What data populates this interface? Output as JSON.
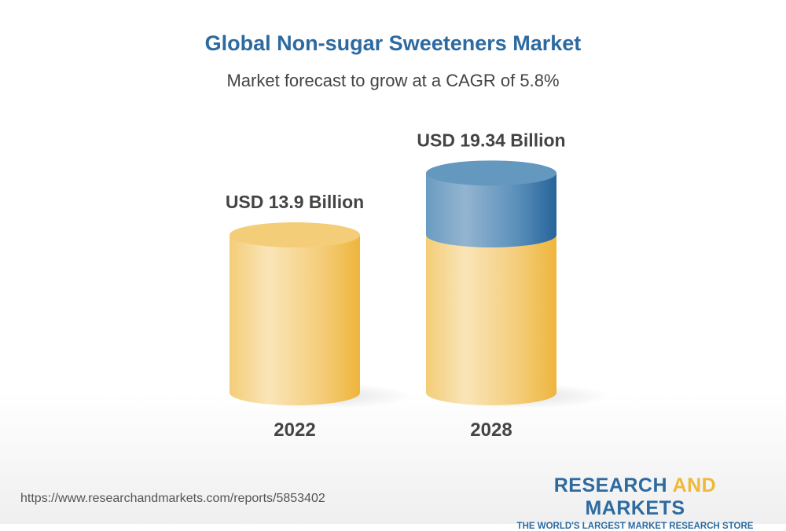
{
  "header": {
    "title": "Global Non-sugar Sweeteners Market",
    "subtitle": "Market forecast to grow at a CAGR of 5.8%"
  },
  "chart_data": {
    "type": "bar",
    "style": "3d-cylinder",
    "categories": [
      "2022",
      "2028"
    ],
    "values": [
      13.9,
      19.34
    ],
    "data_labels": [
      "USD 13.9 Billion",
      "USD 19.34 Billion"
    ],
    "unit": "USD Billion",
    "colors": {
      "base": "#f0b83a",
      "growth": "#2c6aa0"
    },
    "grid": false
  },
  "footer": {
    "url": "https://www.researchandmarkets.com/reports/5853402",
    "logo_part1": "RESEARCH ",
    "logo_part2": "AND",
    "logo_part3": " MARKETS",
    "tagline": "THE WORLD'S LARGEST MARKET RESEARCH STORE"
  }
}
